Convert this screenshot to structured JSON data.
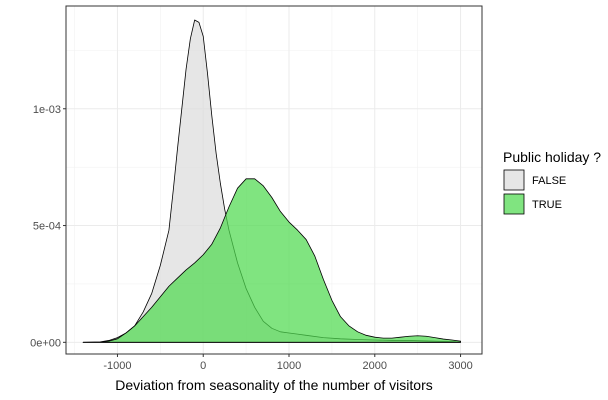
{
  "chart_data": {
    "type": "area",
    "subtype": "density",
    "title": "",
    "xlabel": "Deviation from seasonality of the number of visitors",
    "ylabel": "",
    "xlim": [
      -1600,
      3250
    ],
    "ylim": [
      -5e-05,
      0.00144
    ],
    "x_ticks": [
      -1000,
      0,
      1000,
      2000,
      3000
    ],
    "x_tick_labels": [
      "-1000",
      "0",
      "1000",
      "2000",
      "3000"
    ],
    "y_ticks": [
      0,
      0.0005,
      0.001
    ],
    "y_tick_labels": [
      "0e+00",
      "5e-04",
      "1e-03"
    ],
    "grid": true,
    "legend": {
      "title": "Public holiday ?",
      "position": "right"
    },
    "series": [
      {
        "name": "FALSE",
        "color": "#dcdcdc",
        "points": [
          [
            -1400,
            0
          ],
          [
            -1200,
            2e-06
          ],
          [
            -1100,
            8e-06
          ],
          [
            -1000,
            2e-05
          ],
          [
            -900,
            4e-05
          ],
          [
            -800,
            7e-05
          ],
          [
            -700,
            0.00013
          ],
          [
            -600,
            0.00021
          ],
          [
            -500,
            0.00033
          ],
          [
            -400,
            0.00048
          ],
          [
            -350,
            0.00065
          ],
          [
            -300,
            0.00083
          ],
          [
            -250,
            0.001
          ],
          [
            -200,
            0.00117
          ],
          [
            -150,
            0.0013
          ],
          [
            -100,
            0.00138
          ],
          [
            -50,
            0.00137
          ],
          [
            0,
            0.00131
          ],
          [
            50,
            0.00115
          ],
          [
            100,
            0.00097
          ],
          [
            150,
            0.00081
          ],
          [
            200,
            0.00068
          ],
          [
            250,
            0.00057
          ],
          [
            300,
            0.00048
          ],
          [
            400,
            0.00034
          ],
          [
            500,
            0.00023
          ],
          [
            600,
            0.00015
          ],
          [
            700,
            9e-05
          ],
          [
            800,
            6e-05
          ],
          [
            900,
            4.5e-05
          ],
          [
            1000,
            4e-05
          ],
          [
            1100,
            3.5e-05
          ],
          [
            1200,
            3e-05
          ],
          [
            1400,
            2e-05
          ],
          [
            1600,
            1.5e-05
          ],
          [
            1800,
            1.2e-05
          ],
          [
            2000,
            1e-05
          ],
          [
            2200,
            8e-06
          ],
          [
            2400,
            8e-06
          ],
          [
            2600,
            6e-06
          ],
          [
            2800,
            4e-06
          ],
          [
            3000,
            2e-06
          ]
        ]
      },
      {
        "name": "TRUE",
        "color": "#4fd94f",
        "points": [
          [
            -1400,
            0
          ],
          [
            -1200,
            1e-06
          ],
          [
            -1100,
            5e-06
          ],
          [
            -1000,
            1.5e-05
          ],
          [
            -900,
            4e-05
          ],
          [
            -800,
            7e-05
          ],
          [
            -700,
            0.00011
          ],
          [
            -600,
            0.00015
          ],
          [
            -500,
            0.000195
          ],
          [
            -400,
            0.00024
          ],
          [
            -300,
            0.000275
          ],
          [
            -200,
            0.00031
          ],
          [
            -100,
            0.00034
          ],
          [
            0,
            0.000375
          ],
          [
            100,
            0.00042
          ],
          [
            200,
            0.00049
          ],
          [
            300,
            0.00058
          ],
          [
            400,
            0.00066
          ],
          [
            500,
            0.0007
          ],
          [
            600,
            0.0007
          ],
          [
            700,
            0.00067
          ],
          [
            800,
            0.00062
          ],
          [
            900,
            0.00056
          ],
          [
            1000,
            0.000515
          ],
          [
            1100,
            0.00048
          ],
          [
            1200,
            0.00044
          ],
          [
            1300,
            0.00037
          ],
          [
            1400,
            0.00027
          ],
          [
            1500,
            0.00018
          ],
          [
            1600,
            0.00011
          ],
          [
            1700,
            7e-05
          ],
          [
            1800,
            4.5e-05
          ],
          [
            1900,
            3e-05
          ],
          [
            2000,
            2.2e-05
          ],
          [
            2100,
            1.8e-05
          ],
          [
            2200,
            1.8e-05
          ],
          [
            2300,
            2.2e-05
          ],
          [
            2400,
            2.6e-05
          ],
          [
            2500,
            2.8e-05
          ],
          [
            2600,
            2.6e-05
          ],
          [
            2700,
            2e-05
          ],
          [
            2800,
            1.4e-05
          ],
          [
            2900,
            1e-05
          ],
          [
            3000,
            5e-06
          ]
        ]
      }
    ]
  }
}
